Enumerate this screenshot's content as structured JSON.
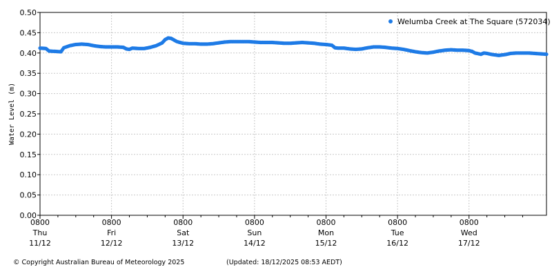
{
  "chart_data": {
    "type": "scatter",
    "ylabel": "Water Level (m)",
    "ylim": [
      0,
      0.5
    ],
    "y_ticks": [
      "0.00",
      "0.05",
      "0.10",
      "0.15",
      "0.20",
      "0.25",
      "0.30",
      "0.35",
      "0.40",
      "0.45",
      "0.50"
    ],
    "x_range_hours": [
      0,
      170
    ],
    "x_ticks": [
      {
        "time": "0800",
        "day": "Thu",
        "date": "11/12"
      },
      {
        "time": "0800",
        "day": "Fri",
        "date": "12/12"
      },
      {
        "time": "0800",
        "day": "Sat",
        "date": "13/12"
      },
      {
        "time": "0800",
        "day": "Sun",
        "date": "14/12"
      },
      {
        "time": "0800",
        "day": "Mon",
        "date": "15/12"
      },
      {
        "time": "0800",
        "day": "Tue",
        "date": "16/12"
      },
      {
        "time": "0800",
        "day": "Wed",
        "date": "17/12"
      }
    ],
    "grid": true,
    "legend_position": "top-right",
    "series": [
      {
        "name": "Welumba Creek at The Square (572034)",
        "color": "#1e7be6",
        "points": [
          [
            0,
            0.412
          ],
          [
            2,
            0.411
          ],
          [
            3,
            0.405
          ],
          [
            5,
            0.404
          ],
          [
            7,
            0.403
          ],
          [
            8,
            0.413
          ],
          [
            10,
            0.418
          ],
          [
            12,
            0.421
          ],
          [
            14,
            0.422
          ],
          [
            16,
            0.421
          ],
          [
            18,
            0.418
          ],
          [
            20,
            0.416
          ],
          [
            22,
            0.415
          ],
          [
            24,
            0.415
          ],
          [
            26,
            0.415
          ],
          [
            28,
            0.414
          ],
          [
            29,
            0.41
          ],
          [
            30,
            0.409
          ],
          [
            31,
            0.412
          ],
          [
            33,
            0.411
          ],
          [
            35,
            0.411
          ],
          [
            37,
            0.414
          ],
          [
            39,
            0.418
          ],
          [
            41,
            0.425
          ],
          [
            42,
            0.433
          ],
          [
            43,
            0.437
          ],
          [
            44,
            0.436
          ],
          [
            45,
            0.432
          ],
          [
            46,
            0.428
          ],
          [
            48,
            0.424
          ],
          [
            50,
            0.423
          ],
          [
            52,
            0.423
          ],
          [
            54,
            0.422
          ],
          [
            56,
            0.422
          ],
          [
            58,
            0.423
          ],
          [
            60,
            0.425
          ],
          [
            62,
            0.427
          ],
          [
            64,
            0.428
          ],
          [
            66,
            0.428
          ],
          [
            68,
            0.428
          ],
          [
            70,
            0.428
          ],
          [
            72,
            0.427
          ],
          [
            74,
            0.426
          ],
          [
            76,
            0.426
          ],
          [
            78,
            0.426
          ],
          [
            80,
            0.425
          ],
          [
            82,
            0.424
          ],
          [
            84,
            0.424
          ],
          [
            86,
            0.425
          ],
          [
            88,
            0.426
          ],
          [
            90,
            0.425
          ],
          [
            92,
            0.424
          ],
          [
            94,
            0.422
          ],
          [
            96,
            0.421
          ],
          [
            98,
            0.419
          ],
          [
            99,
            0.413
          ],
          [
            100,
            0.412
          ],
          [
            102,
            0.412
          ],
          [
            104,
            0.41
          ],
          [
            106,
            0.409
          ],
          [
            108,
            0.41
          ],
          [
            110,
            0.413
          ],
          [
            112,
            0.415
          ],
          [
            114,
            0.415
          ],
          [
            116,
            0.414
          ],
          [
            118,
            0.412
          ],
          [
            120,
            0.411
          ],
          [
            122,
            0.409
          ],
          [
            124,
            0.406
          ],
          [
            126,
            0.403
          ],
          [
            128,
            0.401
          ],
          [
            130,
            0.4
          ],
          [
            132,
            0.402
          ],
          [
            134,
            0.405
          ],
          [
            136,
            0.407
          ],
          [
            138,
            0.408
          ],
          [
            140,
            0.407
          ],
          [
            142,
            0.407
          ],
          [
            144,
            0.406
          ],
          [
            145,
            0.404
          ],
          [
            146,
            0.4
          ],
          [
            148,
            0.397
          ],
          [
            149,
            0.4
          ],
          [
            150,
            0.399
          ],
          [
            152,
            0.396
          ],
          [
            154,
            0.394
          ],
          [
            156,
            0.396
          ],
          [
            158,
            0.399
          ],
          [
            160,
            0.4
          ],
          [
            162,
            0.4
          ],
          [
            164,
            0.4
          ],
          [
            166,
            0.399
          ],
          [
            168,
            0.398
          ],
          [
            170,
            0.397
          ]
        ]
      }
    ]
  },
  "footer": {
    "copyright": "© Copyright Australian Bureau of Meteorology 2025",
    "updated": "(Updated: 18/12/2025 08:53 AEDT)"
  }
}
